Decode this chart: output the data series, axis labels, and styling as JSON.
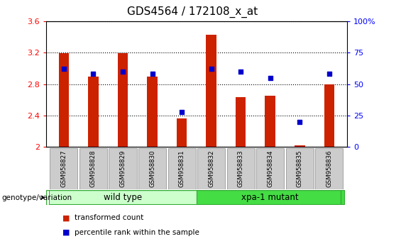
{
  "title": "GDS4564 / 172108_x_at",
  "samples": [
    "GSM958827",
    "GSM958828",
    "GSM958829",
    "GSM958830",
    "GSM958831",
    "GSM958832",
    "GSM958833",
    "GSM958834",
    "GSM958835",
    "GSM958836"
  ],
  "transformed_count": [
    3.19,
    2.9,
    3.19,
    2.9,
    2.36,
    3.43,
    2.63,
    2.65,
    2.02,
    2.8
  ],
  "percentile_rank": [
    62,
    58,
    60,
    58,
    28,
    62,
    60,
    55,
    20,
    58
  ],
  "ylim_left": [
    2.0,
    3.6
  ],
  "ylim_right": [
    0,
    100
  ],
  "yticks_left": [
    2.0,
    2.4,
    2.8,
    3.2,
    3.6
  ],
  "yticks_right": [
    0,
    25,
    50,
    75,
    100
  ],
  "ytick_labels_right": [
    "0",
    "25",
    "50",
    "75",
    "100%"
  ],
  "bar_color": "#cc2200",
  "dot_color": "#0000cc",
  "groups": [
    {
      "label": "wild type",
      "indices": [
        0,
        1,
        2,
        3,
        4
      ],
      "color_light": "#d4f5d4",
      "color_mid": "#55dd55"
    },
    {
      "label": "xpa-1 mutant",
      "indices": [
        5,
        6,
        7,
        8,
        9
      ],
      "color_light": "#55dd55",
      "color_mid": "#22bb22"
    }
  ],
  "xlabel_group": "genotype/variation",
  "legend_items": [
    {
      "label": "transformed count",
      "color": "#cc2200"
    },
    {
      "label": "percentile rank within the sample",
      "color": "#0000cc"
    }
  ],
  "title_fontsize": 11,
  "tick_fontsize": 8,
  "bar_width": 0.35
}
